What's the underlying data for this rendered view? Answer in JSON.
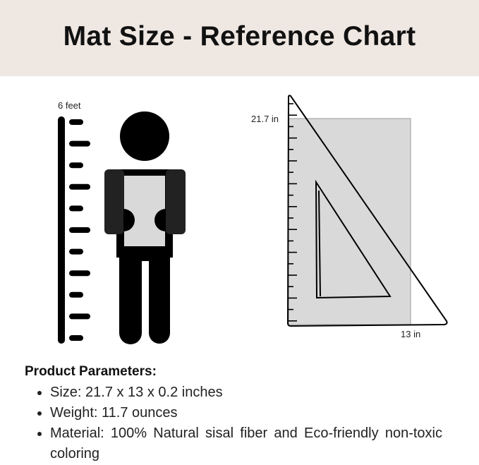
{
  "header": {
    "title": "Mat Size - Reference Chart",
    "background": "#efe7e2"
  },
  "figure": {
    "height_label": "6 feet",
    "length_label": "21.7 in",
    "width_label": "13 in",
    "mat_color": "#d9d9d9"
  },
  "params": {
    "title": "Product Parameters:",
    "items": [
      "Size: 21.7 x 13 x 0.2 inches",
      "Weight: 11.7 ounces",
      "Material: 100% Natural sisal fiber and Eco-friendly non-toxic coloring"
    ]
  }
}
